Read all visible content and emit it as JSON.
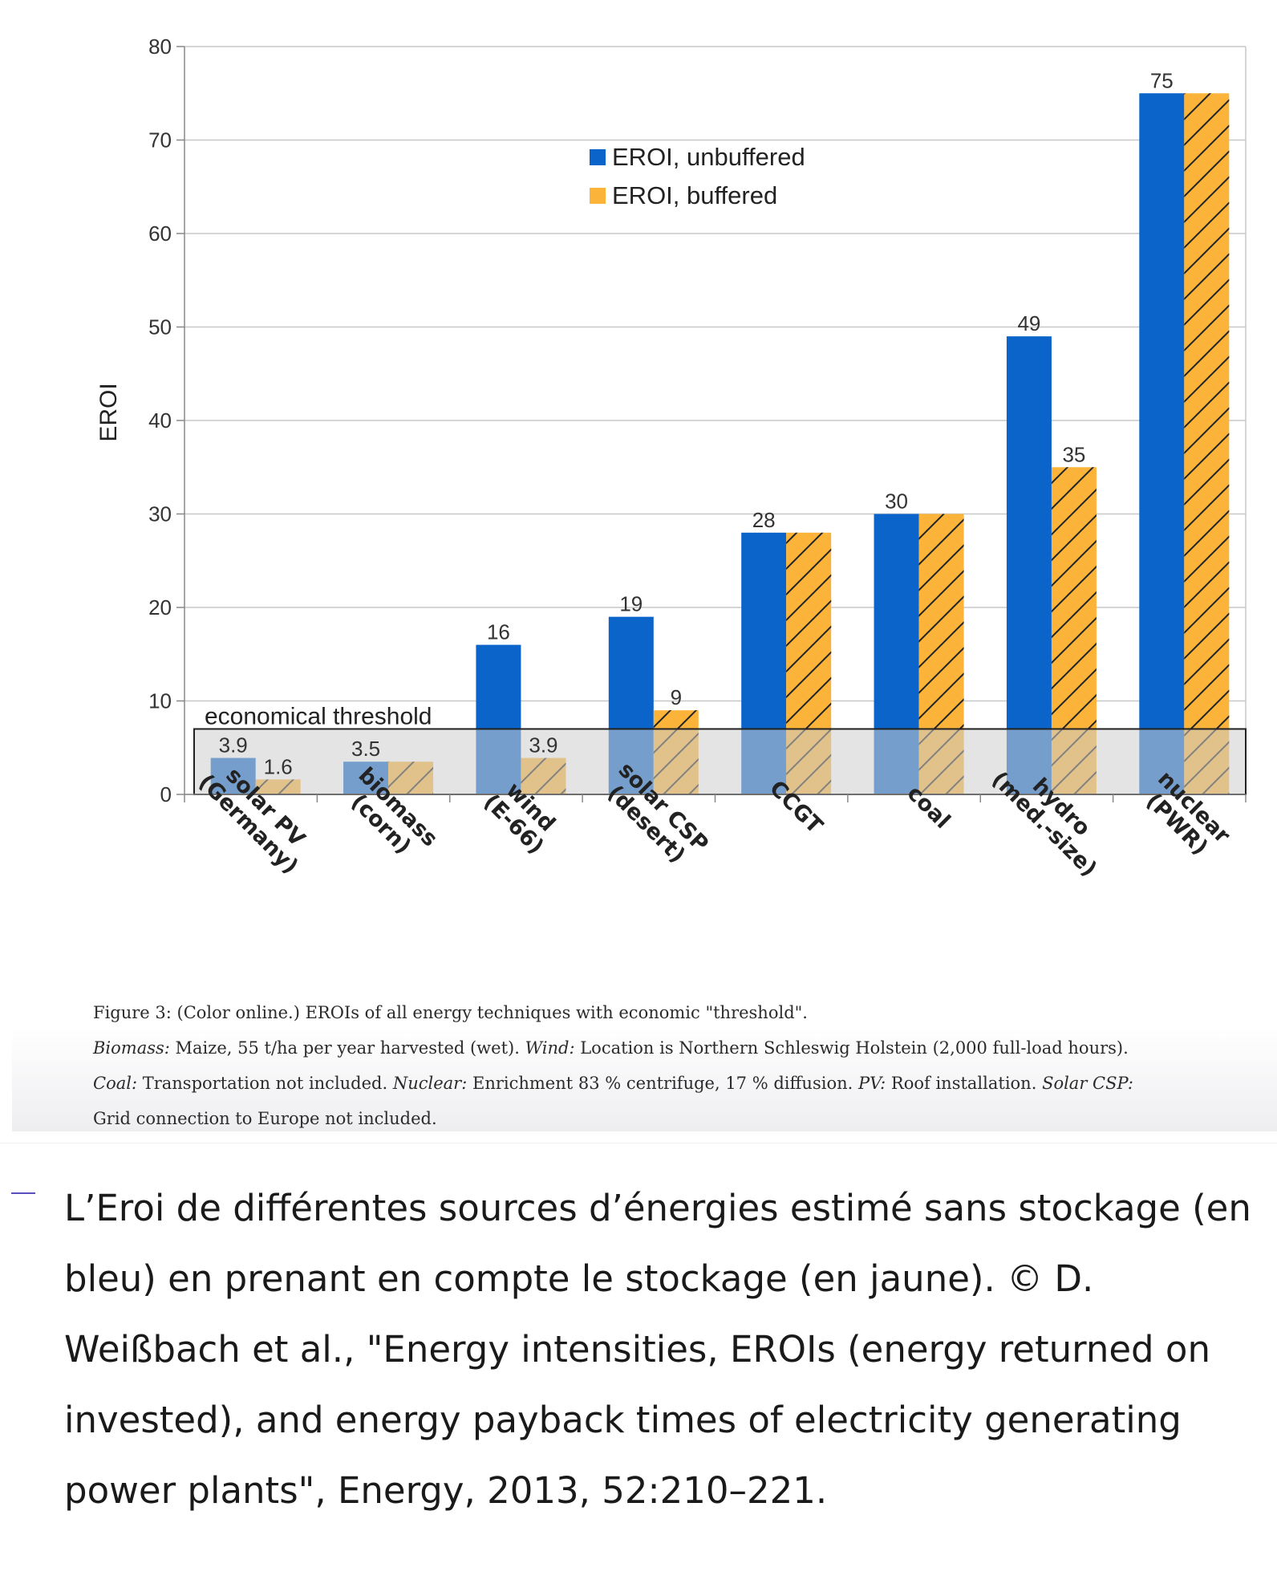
{
  "chart_data": {
    "type": "bar",
    "title": "",
    "xlabel": "",
    "ylabel": "EROI",
    "ylim": [
      0,
      80
    ],
    "yticks": [
      "0",
      "10",
      "20",
      "30",
      "40",
      "50",
      "60",
      "70",
      "80"
    ],
    "grid": true,
    "legend_position": "top-center",
    "categories": [
      [
        "solar PV",
        "(Germany)"
      ],
      [
        "biomass",
        "(corn)"
      ],
      [
        "wind",
        "(E-66)"
      ],
      [
        "solar CSP",
        "(desert)"
      ],
      [
        "CCGT"
      ],
      [
        "coal"
      ],
      [
        "hydro",
        "(med.-size)"
      ],
      [
        "nuclear",
        "(PWR)"
      ]
    ],
    "series": [
      {
        "name": "EROI, unbuffered",
        "color": "#0a64c9",
        "values": [
          3.9,
          3.5,
          16,
          19,
          28,
          30,
          49,
          75
        ],
        "labels": [
          "3.9",
          "3.5",
          "16",
          "19",
          "28",
          "30",
          "49",
          "75"
        ]
      },
      {
        "name": "EROI, buffered",
        "color": "#fbb33a",
        "hatched": true,
        "values": [
          1.6,
          3.5,
          3.9,
          9,
          28,
          30,
          35,
          75
        ],
        "labels": [
          "1.6",
          "",
          "3.9",
          "9",
          "",
          "",
          "35",
          ""
        ]
      }
    ],
    "threshold": {
      "label": "economical threshold",
      "value": 7
    }
  },
  "figure_caption": {
    "line1": "Figure 3: (Color online.) EROIs of all energy techniques with economic \"threshold\".",
    "biomass_label": "Biomass:",
    "biomass_text": " Maize, 55 t/ha per year harvested (wet). ",
    "wind_label": "Wind:",
    "wind_text": " Location is Northern Schleswig Holstein (2,000 full-load hours).",
    "coal_label": "Coal:",
    "coal_text": " Transportation not included. ",
    "nuclear_label": "Nuclear:",
    "nuclear_text": " Enrichment 83 % centrifuge, 17 % diffusion. ",
    "pv_label": "PV:",
    "pv_text": " Roof installation. ",
    "csp_label": "Solar CSP:",
    "csp_text": "Grid connection to Europe not included."
  },
  "photo_caption": "L’Eroi de différentes sources d’énergies estimé sans stockage (en bleu) en prenant en compte le stockage (en jaune). © D. Weißbach et al., \"Energy intensities, EROIs (energy returned on invested), and energy payback times of electricity generating power plants\", Energy, 2013, 52:210–221."
}
